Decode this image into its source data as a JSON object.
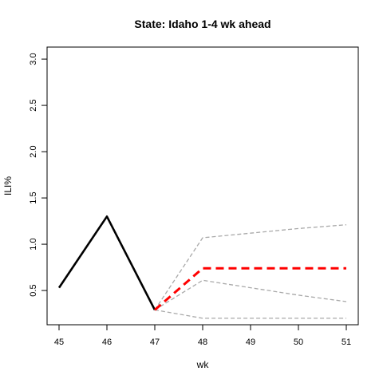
{
  "chart_data": {
    "type": "line",
    "title": "State: Idaho 1-4 wk ahead",
    "xlabel": "wk",
    "ylabel": "ILI%",
    "xlim": [
      44.75,
      51.25
    ],
    "ylim": [
      0.13,
      3.13
    ],
    "x_ticks": [
      45,
      46,
      47,
      48,
      49,
      50,
      51
    ],
    "y_ticks": [
      0.5,
      1.0,
      1.5,
      2.0,
      2.5,
      3.0
    ],
    "y_tick_labels": [
      "0.5",
      "1.0",
      "1.5",
      "2.0",
      "2.5",
      "3.0"
    ],
    "grid": false,
    "series": [
      {
        "key": "observed",
        "x": [
          45,
          46,
          47
        ],
        "y": [
          0.53,
          1.3,
          0.29
        ],
        "color": "#000000",
        "style": "solid"
      },
      {
        "key": "forecast",
        "x": [
          47,
          48,
          49,
          50,
          51
        ],
        "y": [
          0.29,
          0.74,
          0.74,
          0.74,
          0.74
        ],
        "color": "#ff0000",
        "style": "dashed"
      },
      {
        "key": "upper",
        "x": [
          47,
          48,
          49,
          50,
          51
        ],
        "y": [
          0.29,
          1.07,
          1.12,
          1.17,
          1.21
        ],
        "color": "#a9a9a9",
        "style": "dashed"
      },
      {
        "key": "mid",
        "x": [
          47,
          48,
          49,
          50,
          51
        ],
        "y": [
          0.29,
          0.61,
          0.53,
          0.45,
          0.38
        ],
        "color": "#a9a9a9",
        "style": "dashed"
      },
      {
        "key": "lower",
        "x": [
          47,
          48,
          49,
          50,
          51
        ],
        "y": [
          0.29,
          0.2,
          0.2,
          0.2,
          0.2
        ],
        "color": "#a9a9a9",
        "style": "dashed"
      }
    ]
  }
}
